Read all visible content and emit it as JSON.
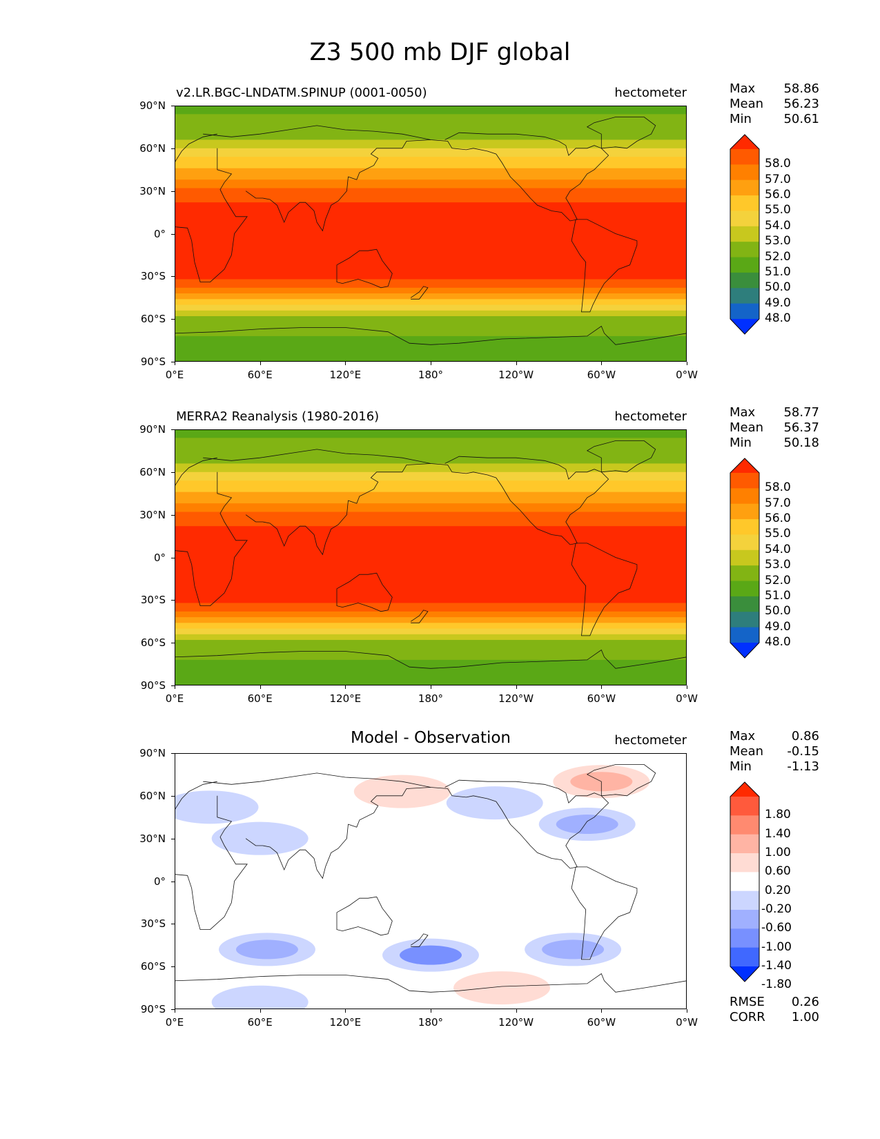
{
  "figure_title": "Z3 500 mb DJF global",
  "units": "hectometer",
  "lat_ticks": [
    "90°N",
    "60°N",
    "30°N",
    "0°",
    "30°S",
    "60°S",
    "90°S"
  ],
  "lon_ticks": [
    "0°E",
    "60°E",
    "120°E",
    "180°",
    "120°W",
    "60°W",
    "0°W"
  ],
  "panels": [
    {
      "title": "v2.LR.BGC-LNDATM.SPINUP (0001-0050)",
      "stats": [
        {
          "label": "Max",
          "value": "58.86"
        },
        {
          "label": "Mean",
          "value": "56.23"
        },
        {
          "label": "Min",
          "value": "50.61"
        }
      ],
      "extra_stats": []
    },
    {
      "title": "MERRA2 Reanalysis (1980-2016)",
      "stats": [
        {
          "label": "Max",
          "value": "58.77"
        },
        {
          "label": "Mean",
          "value": "56.37"
        },
        {
          "label": "Min",
          "value": "50.18"
        }
      ],
      "extra_stats": []
    },
    {
      "title": "Model - Observation",
      "stats": [
        {
          "label": "Max",
          "value": "0.86"
        },
        {
          "label": "Mean",
          "value": "-0.15"
        },
        {
          "label": "Min",
          "value": "-1.13"
        }
      ],
      "extra_stats": [
        {
          "label": "RMSE",
          "value": "0.26"
        },
        {
          "label": "CORR",
          "value": "1.00"
        }
      ]
    }
  ],
  "chart_data": [
    {
      "type": "heatmap",
      "title": "v2.LR.BGC-LNDATM.SPINUP (0001-0050)",
      "units": "hectometer",
      "x_range_deg_lon": [
        0,
        360
      ],
      "y_range_deg_lat": [
        -90,
        90
      ],
      "colorbar_levels": [
        "58.0",
        "57.0",
        "56.0",
        "55.0",
        "54.0",
        "53.0",
        "52.0",
        "51.0",
        "50.0",
        "49.0",
        "48.0"
      ],
      "colorbar_colors": [
        "#ff2a00",
        "#ff5a00",
        "#ff8000",
        "#ffa010",
        "#ffc82a",
        "#f4d23c",
        "#c8c81e",
        "#82b414",
        "#5aa816",
        "#3a8e3c",
        "#2e7e7c",
        "#1464c8",
        "#0030ff"
      ],
      "zonal_profile": [
        {
          "lat": 90,
          "value": 50.8
        },
        {
          "lat": 70,
          "value": 51.5
        },
        {
          "lat": 50,
          "value": 54.5
        },
        {
          "lat": 30,
          "value": 57.2
        },
        {
          "lat": 20,
          "value": 58.3
        },
        {
          "lat": 0,
          "value": 58.6
        },
        {
          "lat": -30,
          "value": 58.2
        },
        {
          "lat": -40,
          "value": 56.5
        },
        {
          "lat": -50,
          "value": 53.8
        },
        {
          "lat": -60,
          "value": 51.6
        },
        {
          "lat": -75,
          "value": 50.9
        },
        {
          "lat": -90,
          "value": 50.8
        }
      ],
      "max": 58.86,
      "mean": 56.23,
      "min": 50.61
    },
    {
      "type": "heatmap",
      "title": "MERRA2 Reanalysis (1980-2016)",
      "units": "hectometer",
      "x_range_deg_lon": [
        0,
        360
      ],
      "y_range_deg_lat": [
        -90,
        90
      ],
      "colorbar_levels": [
        "58.0",
        "57.0",
        "56.0",
        "55.0",
        "54.0",
        "53.0",
        "52.0",
        "51.0",
        "50.0",
        "49.0",
        "48.0"
      ],
      "colorbar_colors": [
        "#ff2a00",
        "#ff5a00",
        "#ff8000",
        "#ffa010",
        "#ffc82a",
        "#f4d23c",
        "#c8c81e",
        "#82b414",
        "#5aa816",
        "#3a8e3c",
        "#2e7e7c",
        "#1464c8",
        "#0030ff"
      ],
      "zonal_profile": [
        {
          "lat": 90,
          "value": 50.8
        },
        {
          "lat": 70,
          "value": 51.5
        },
        {
          "lat": 50,
          "value": 54.5
        },
        {
          "lat": 30,
          "value": 57.2
        },
        {
          "lat": 20,
          "value": 58.3
        },
        {
          "lat": 0,
          "value": 58.6
        },
        {
          "lat": -30,
          "value": 58.2
        },
        {
          "lat": -40,
          "value": 56.5
        },
        {
          "lat": -50,
          "value": 53.8
        },
        {
          "lat": -60,
          "value": 51.6
        },
        {
          "lat": -75,
          "value": 50.9
        },
        {
          "lat": -90,
          "value": 50.8
        }
      ],
      "max": 58.77,
      "mean": 56.37,
      "min": 50.18
    },
    {
      "type": "heatmap",
      "title": "Model - Observation",
      "units": "hectometer",
      "x_range_deg_lon": [
        0,
        360
      ],
      "y_range_deg_lat": [
        -90,
        90
      ],
      "colorbar_levels": [
        "1.80",
        "1.40",
        "1.00",
        "0.60",
        "0.20",
        "-0.20",
        "-0.60",
        "-1.00",
        "-1.40",
        "-1.80"
      ],
      "colorbar_colors": [
        "#ff2a00",
        "#ff5a3c",
        "#ff8a70",
        "#ffb4a4",
        "#ffdcd4",
        "#ffffff",
        "#ccd6ff",
        "#a0b0ff",
        "#7890ff",
        "#4068ff",
        "#0030ff"
      ],
      "anomalies": [
        {
          "lon": 300,
          "lat": 70,
          "value": 0.7
        },
        {
          "lon": 160,
          "lat": 63,
          "value": 0.4
        },
        {
          "lon": 230,
          "lat": -75,
          "value": 0.4
        },
        {
          "lon": 25,
          "lat": 52,
          "value": -0.5
        },
        {
          "lon": 60,
          "lat": 30,
          "value": -0.6
        },
        {
          "lon": 290,
          "lat": 40,
          "value": -0.8
        },
        {
          "lon": 225,
          "lat": 55,
          "value": -0.4
        },
        {
          "lon": 65,
          "lat": -48,
          "value": -0.9
        },
        {
          "lon": 180,
          "lat": -52,
          "value": -1.1
        },
        {
          "lon": 280,
          "lat": -48,
          "value": -0.9
        },
        {
          "lon": 60,
          "lat": -85,
          "value": -0.4
        }
      ],
      "max": 0.86,
      "mean": -0.15,
      "min": -1.13,
      "rmse": 0.26,
      "corr": 1.0
    }
  ]
}
